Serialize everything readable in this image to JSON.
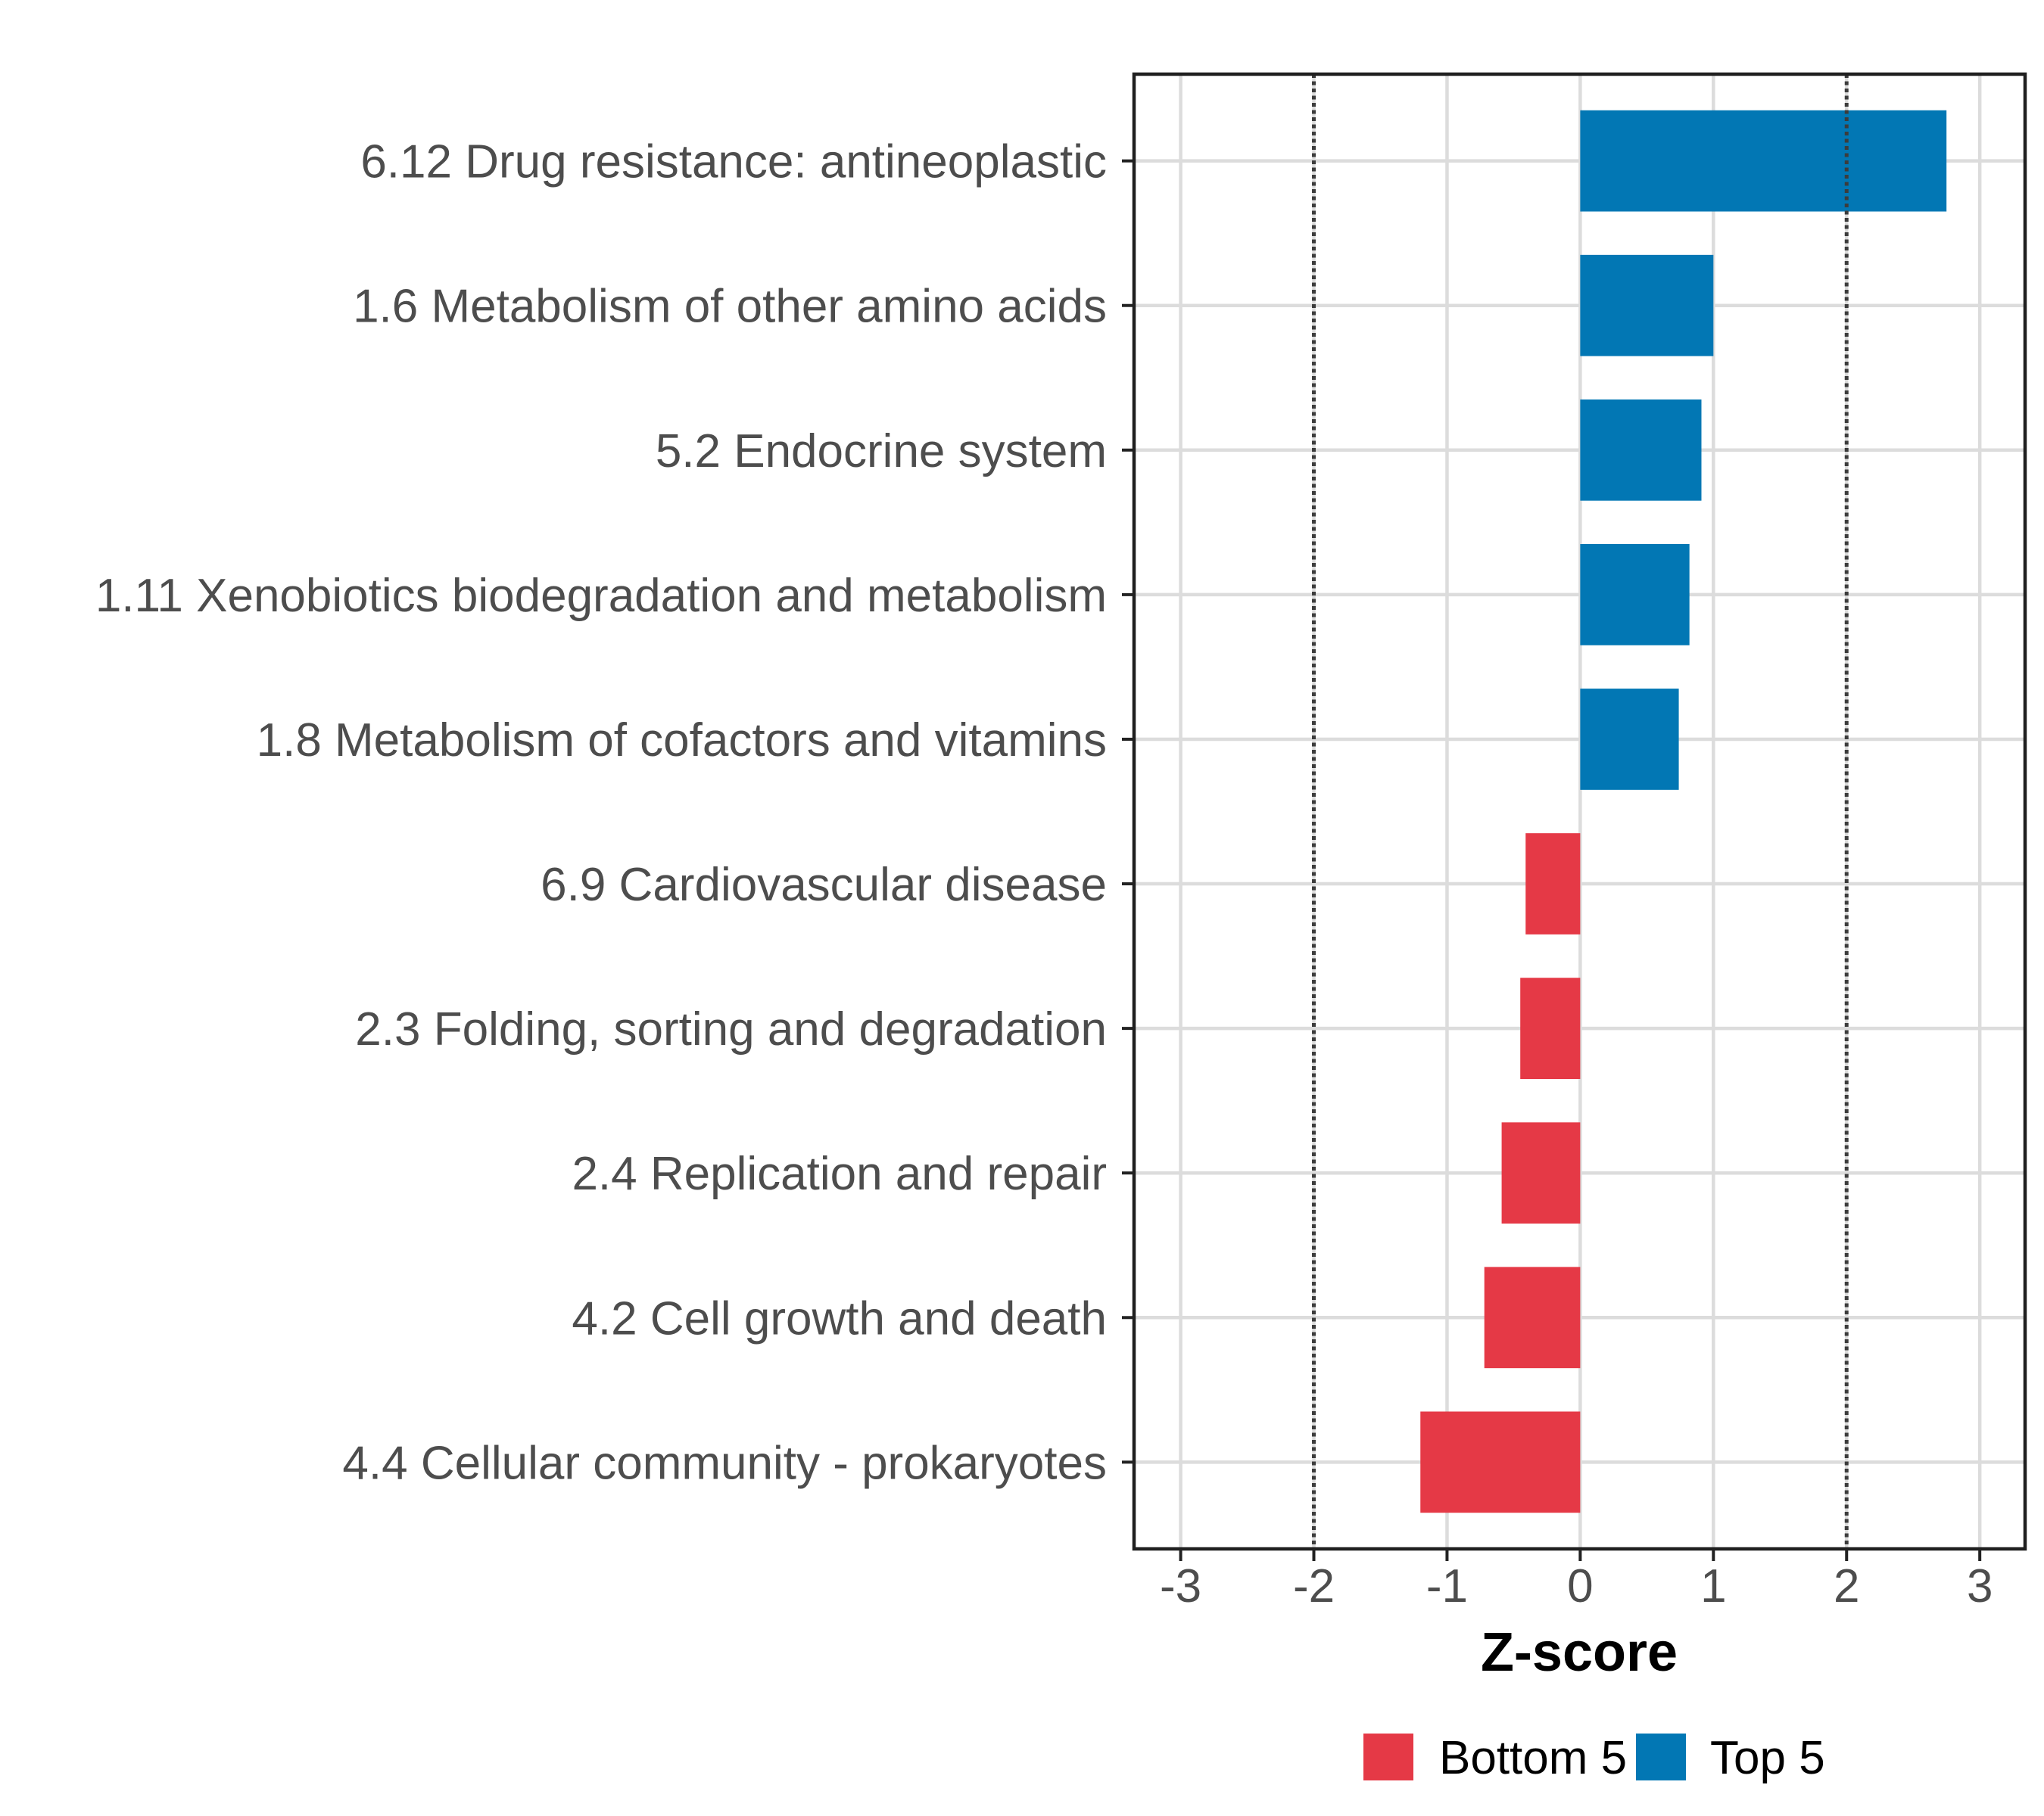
{
  "chart_data": {
    "type": "bar",
    "orientation": "horizontal",
    "title": "",
    "xlabel": "Z-score",
    "ylabel": "",
    "categories": [
      "6.12 Drug resistance: antineoplastic",
      "1.6 Metabolism of other amino acids",
      "5.2 Endocrine system",
      "1.11 Xenobiotics biodegradation and metabolism",
      "1.8 Metabolism of cofactors and vitamins",
      "6.9 Cardiovascular disease",
      "2.3 Folding, sorting and degradation",
      "2.4 Replication and repair",
      "4.2 Cell growth and death",
      "4.4 Cellular community - prokaryotes"
    ],
    "values": [
      2.75,
      1.0,
      0.91,
      0.82,
      0.74,
      -0.41,
      -0.45,
      -0.59,
      -0.72,
      -1.2
    ],
    "groups": [
      "Top 5",
      "Top 5",
      "Top 5",
      "Top 5",
      "Top 5",
      "Bottom 5",
      "Bottom 5",
      "Bottom 5",
      "Bottom 5",
      "Bottom 5"
    ],
    "colors": {
      "Top 5": "#0277B4",
      "Bottom 5": "#E53946"
    },
    "xlim": [
      -3.35,
      3.34
    ],
    "xticks": [
      -3,
      -2,
      -1,
      0,
      1,
      2,
      3
    ],
    "xtick_labels": [
      "-3",
      "-2",
      "-1",
      "0",
      "1",
      "2",
      "3"
    ],
    "reference_lines": [
      -2,
      2
    ],
    "grid": true,
    "legend": {
      "position": "bottom",
      "items": [
        {
          "label": "Bottom 5",
          "color": "#E53946"
        },
        {
          "label": "Top 5",
          "color": "#0277B4"
        }
      ]
    }
  }
}
